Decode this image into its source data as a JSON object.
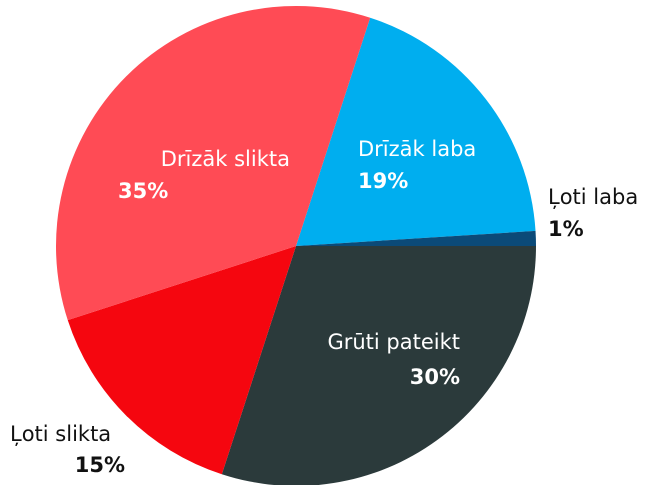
{
  "chart_data": {
    "type": "pie",
    "categories": [
      "Drīzāk laba",
      "Ļoti laba",
      "Grūti pateikt",
      "Ļoti slikta",
      "Drīzāk slikta"
    ],
    "values": [
      19,
      1,
      30,
      15,
      35
    ],
    "value_labels": [
      "19%",
      "1%",
      "30%",
      "15%",
      "35%"
    ],
    "colors": [
      "#00aeef",
      "#0b4a78",
      "#2b3a3b",
      "#f5060f",
      "#ff4b55"
    ]
  }
}
